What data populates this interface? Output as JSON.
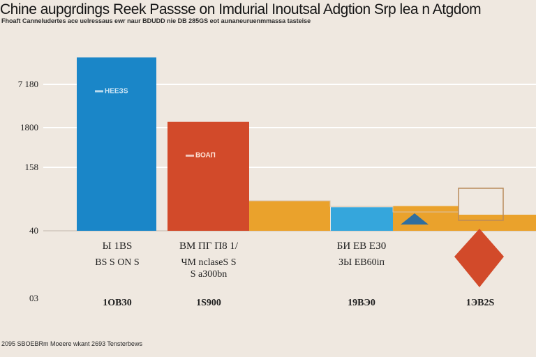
{
  "header": {
    "title": "Chine aupgrdings Reek Passse on Imdurial Inoutsal Adgtion Srp lea n Atgdom",
    "subtitle": "Fhoaft  Canneludertes ace  uelressaus ewr naur  BDUDD nie DB  285GS  eot aunaneuruenmmassa  tasteise"
  },
  "footer": {
    "text": "2095 SBOEBRm  Moeere wkant    2693 Tensterbews"
  },
  "colors": {
    "blue": "#1a86c8",
    "red": "#d24a2a",
    "orange": "#eaa22c",
    "light_blue": "#35a6dc",
    "grid": "#ffffff",
    "background": "#efe8e0"
  },
  "chart_data": {
    "type": "bar",
    "title": "Chine aupgrdings Reek Passse on Imdurial Inoutsal Adgtion Srp lea n Atgdom",
    "xlabel": "",
    "ylabel": "",
    "y_ticks": [
      "7 180",
      "1800",
      "158",
      "40",
      "03"
    ],
    "ylim": [
      0,
      7180
    ],
    "grid": true,
    "legend": "none",
    "categories": [
      {
        "label": "Ы 1ВS",
        "sublabel_1": "ВS S ОN S",
        "sublabel_2": "",
        "bottom": "1ОВЗ0"
      },
      {
        "label": "ВМ ПГ П8  1/",
        "sublabel_1": "ЧМ nclaseS S",
        "sublabel_2": "Ѕ аЗ00bn",
        "bottom": "1S900"
      },
      {
        "label": "БИ ЕВ ЕЗ0",
        "sublabel_1": "ЗЫ ЕВ60іп",
        "sublabel_2": "",
        "bottom": "19ВЭ0"
      },
      {
        "label": "",
        "sublabel_1": "",
        "sublabel_2": "",
        "bottom": "1ЭВ2S"
      }
    ],
    "bars": [
      {
        "value": 7000,
        "color": "#1a86c8",
        "label": "НЕЕЗS"
      },
      {
        "value": 4400,
        "color": "#d24a2a",
        "label": "ВОАП"
      },
      {
        "value": 1200,
        "color": "#eaa22c",
        "label": ""
      },
      {
        "value": 950,
        "color": "#35a6dc",
        "label": ""
      },
      {
        "value": 1000,
        "color": "#eaa22c",
        "label": ""
      },
      {
        "value": 650,
        "color": "#eaa22c",
        "label": ""
      }
    ]
  }
}
